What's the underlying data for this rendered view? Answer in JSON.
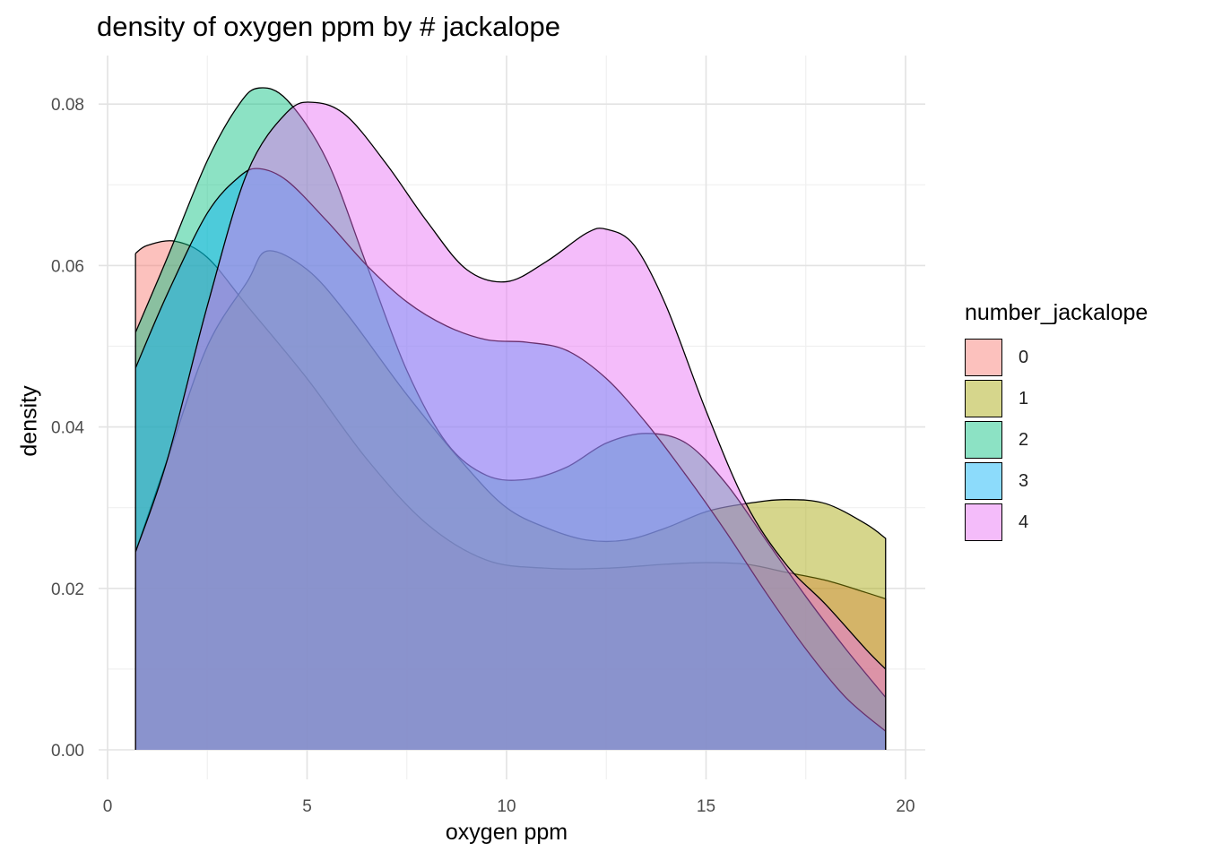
{
  "chart_data": {
    "type": "area",
    "title": "density of oxygen ppm by # jackalope",
    "xlabel": "oxygen ppm",
    "ylabel": "density",
    "xlim": [
      -0.5,
      20.5
    ],
    "ylim": [
      -0.0035,
      0.0875
    ],
    "x_ticks": [
      0,
      5,
      10,
      15,
      20
    ],
    "y_ticks": [
      0.0,
      0.02,
      0.04,
      0.06,
      0.08
    ],
    "y_tick_labels": [
      "0.00",
      "0.02",
      "0.04",
      "0.06",
      "0.08"
    ],
    "grid": true,
    "legend_title": "number_jackalope",
    "legend_position": "right",
    "series": [
      {
        "name": "0",
        "color": "#F8766D",
        "points": [
          [
            0.7,
            0.0615
          ],
          [
            1.0,
            0.0625
          ],
          [
            1.7,
            0.063
          ],
          [
            2.5,
            0.061
          ],
          [
            3.5,
            0.055
          ],
          [
            5.0,
            0.046
          ],
          [
            6.5,
            0.036
          ],
          [
            8.0,
            0.028
          ],
          [
            9.5,
            0.0235
          ],
          [
            11.0,
            0.0225
          ],
          [
            12.5,
            0.0225
          ],
          [
            14.0,
            0.023
          ],
          [
            15.0,
            0.0232
          ],
          [
            16.0,
            0.023
          ],
          [
            17.0,
            0.022
          ],
          [
            18.0,
            0.021
          ],
          [
            19.0,
            0.0195
          ],
          [
            19.5,
            0.0187
          ]
        ]
      },
      {
        "name": "1",
        "color": "#A3A500",
        "points": [
          [
            0.7,
            0.0245
          ],
          [
            1.5,
            0.036
          ],
          [
            2.5,
            0.05
          ],
          [
            3.5,
            0.058
          ],
          [
            4.0,
            0.0618
          ],
          [
            5.0,
            0.0595
          ],
          [
            6.0,
            0.054
          ],
          [
            7.5,
            0.044
          ],
          [
            9.0,
            0.035
          ],
          [
            10.0,
            0.03
          ],
          [
            11.0,
            0.0275
          ],
          [
            12.0,
            0.026
          ],
          [
            13.0,
            0.026
          ],
          [
            14.0,
            0.0275
          ],
          [
            15.0,
            0.0295
          ],
          [
            16.0,
            0.0305
          ],
          [
            17.0,
            0.031
          ],
          [
            18.0,
            0.0305
          ],
          [
            19.0,
            0.028
          ],
          [
            19.5,
            0.0262
          ]
        ]
      },
      {
        "name": "2",
        "color": "#00BF7D",
        "points": [
          [
            0.7,
            0.0517
          ],
          [
            1.5,
            0.061
          ],
          [
            2.5,
            0.073
          ],
          [
            3.3,
            0.08
          ],
          [
            3.8,
            0.082
          ],
          [
            4.5,
            0.0805
          ],
          [
            5.5,
            0.073
          ],
          [
            6.5,
            0.06
          ],
          [
            7.5,
            0.047
          ],
          [
            8.5,
            0.038
          ],
          [
            9.5,
            0.034
          ],
          [
            10.5,
            0.0335
          ],
          [
            11.5,
            0.035
          ],
          [
            12.5,
            0.038
          ],
          [
            13.5,
            0.0392
          ],
          [
            14.5,
            0.038
          ],
          [
            15.5,
            0.033
          ],
          [
            16.5,
            0.026
          ],
          [
            17.5,
            0.019
          ],
          [
            18.5,
            0.0125
          ],
          [
            19.5,
            0.0065
          ]
        ]
      },
      {
        "name": "3",
        "color": "#00B0F6",
        "points": [
          [
            0.7,
            0.0473
          ],
          [
            1.5,
            0.0565
          ],
          [
            2.5,
            0.0665
          ],
          [
            3.3,
            0.071
          ],
          [
            3.8,
            0.072
          ],
          [
            4.5,
            0.0705
          ],
          [
            5.5,
            0.0655
          ],
          [
            6.5,
            0.06
          ],
          [
            7.5,
            0.0555
          ],
          [
            8.5,
            0.0525
          ],
          [
            9.5,
            0.0508
          ],
          [
            10.5,
            0.0505
          ],
          [
            11.5,
            0.0495
          ],
          [
            12.5,
            0.046
          ],
          [
            13.5,
            0.0405
          ],
          [
            14.5,
            0.034
          ],
          [
            15.5,
            0.027
          ],
          [
            16.5,
            0.0195
          ],
          [
            17.5,
            0.0125
          ],
          [
            18.5,
            0.0065
          ],
          [
            19.5,
            0.0023
          ]
        ]
      },
      {
        "name": "4",
        "color": "#E76BF3",
        "points": [
          [
            0.7,
            0.0245
          ],
          [
            1.5,
            0.036
          ],
          [
            2.5,
            0.055
          ],
          [
            3.5,
            0.0715
          ],
          [
            4.5,
            0.079
          ],
          [
            5.2,
            0.0802
          ],
          [
            6.0,
            0.0785
          ],
          [
            7.0,
            0.0725
          ],
          [
            8.0,
            0.0655
          ],
          [
            9.0,
            0.0595
          ],
          [
            10.0,
            0.058
          ],
          [
            11.0,
            0.0605
          ],
          [
            12.0,
            0.064
          ],
          [
            12.5,
            0.0645
          ],
          [
            13.2,
            0.0625
          ],
          [
            14.0,
            0.055
          ],
          [
            15.0,
            0.042
          ],
          [
            16.0,
            0.0305
          ],
          [
            17.0,
            0.023
          ],
          [
            18.0,
            0.018
          ],
          [
            19.0,
            0.0125
          ],
          [
            19.5,
            0.01
          ]
        ]
      }
    ]
  }
}
